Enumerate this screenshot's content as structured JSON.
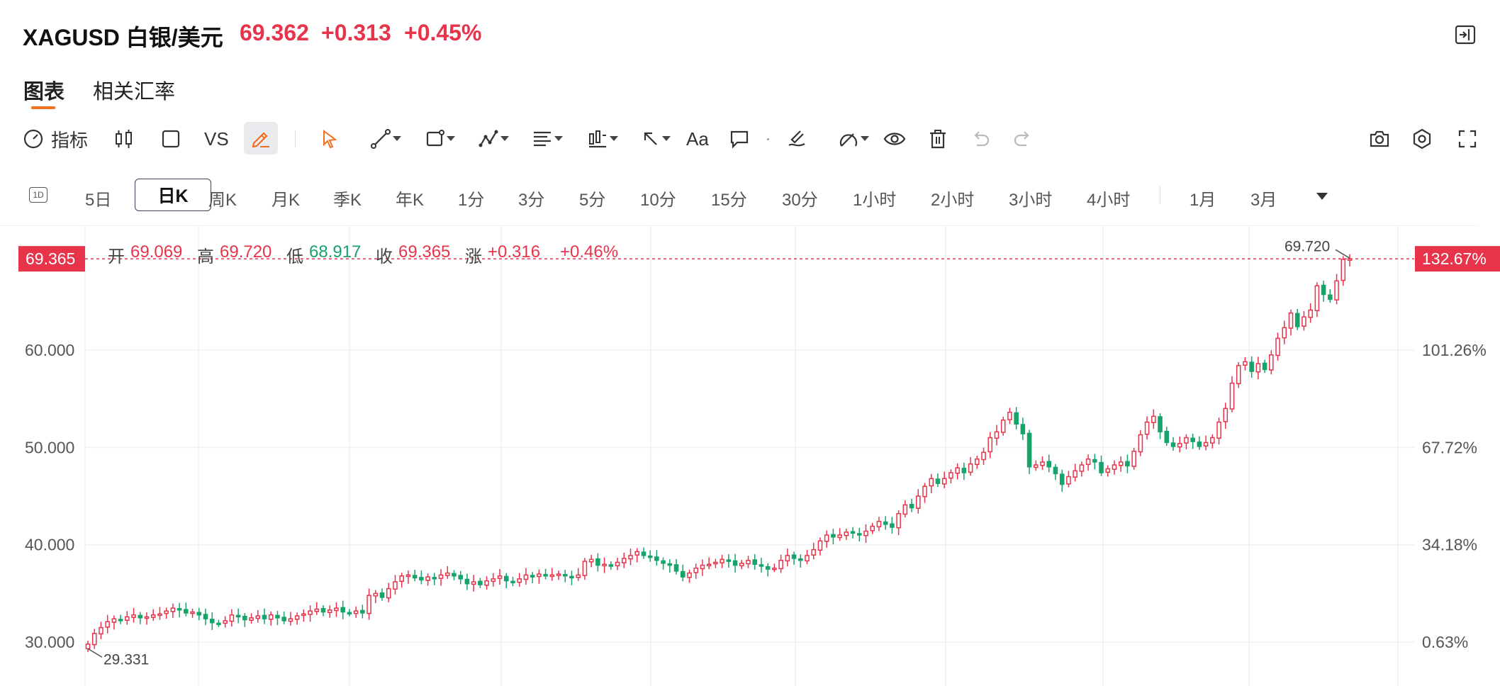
{
  "header": {
    "title": "XAGUSD 白银/美元",
    "price": "69.362",
    "change": "+0.313",
    "change_percent": "+0.45%"
  },
  "tabs": [
    {
      "label": "图表",
      "active": true
    },
    {
      "label": "相关汇率",
      "active": false
    }
  ],
  "toolbar": {
    "indicator_label": "指标",
    "vs_label": "VS",
    "text_label": "Aa"
  },
  "periods": {
    "day_icon": "1D",
    "items": [
      "5日",
      "日K",
      "周K",
      "月K",
      "季K",
      "年K",
      "1分",
      "3分",
      "5分",
      "10分",
      "15分",
      "30分",
      "1小时",
      "2小时",
      "3小时",
      "4小时",
      "1月",
      "3月"
    ],
    "active": "日K"
  },
  "ohlc": {
    "open_label": "开",
    "open": "69.069",
    "high_label": "高",
    "high": "69.720",
    "low_label": "低",
    "low": "68.917",
    "close_label": "收",
    "close": "69.365",
    "change_label": "涨",
    "change": "+0.316",
    "change_percent": "+0.46%"
  },
  "colors": {
    "up": "#e8344b",
    "down": "#17a36a",
    "accent": "#f07020"
  },
  "chart_data": {
    "type": "candlestick",
    "y_left_ticks": [
      "30.000",
      "40.000",
      "50.000",
      "60.000"
    ],
    "y_left_tick_values": [
      30,
      40,
      50,
      60
    ],
    "y_right_ticks": [
      "0.63%",
      "34.18%",
      "67.72%",
      "101.26%"
    ],
    "ylim": [
      25.5,
      72.8
    ],
    "current_price_label": "69.365",
    "current_price": 69.365,
    "current_percent_label": "132.67%",
    "max_label": "69.720",
    "min_label": "29.331",
    "grid": true,
    "closes": [
      29.8,
      30.9,
      31.5,
      32.1,
      32.4,
      32.2,
      32.6,
      32.8,
      32.5,
      32.6,
      32.8,
      32.9,
      33.2,
      33.5,
      33.3,
      33.0,
      33.1,
      32.8,
      32.4,
      32.0,
      31.9,
      32.2,
      32.8,
      32.6,
      32.3,
      32.5,
      32.7,
      32.4,
      32.8,
      32.5,
      32.2,
      32.4,
      32.7,
      32.9,
      33.2,
      33.4,
      33.1,
      33.3,
      33.5,
      33.1,
      33.0,
      33.2,
      33.0,
      34.8,
      35.0,
      34.6,
      35.5,
      36.2,
      36.8,
      36.9,
      36.6,
      36.4,
      36.7,
      36.5,
      36.9,
      37.1,
      36.8,
      36.5,
      36.0,
      36.2,
      35.9,
      36.3,
      36.5,
      36.8,
      36.3,
      36.1,
      36.5,
      36.9,
      36.7,
      37.0,
      36.8,
      36.9,
      37.0,
      36.8,
      36.6,
      36.9,
      38.3,
      38.5,
      37.9,
      38.0,
      37.8,
      38.2,
      38.6,
      38.9,
      39.3,
      38.9,
      38.7,
      38.4,
      38.1,
      37.9,
      37.3,
      36.7,
      37.1,
      37.6,
      37.9,
      38.0,
      38.2,
      38.5,
      38.3,
      37.9,
      38.1,
      38.4,
      38.0,
      37.8,
      37.5,
      37.6,
      38.4,
      38.9,
      38.6,
      38.4,
      38.9,
      39.5,
      40.4,
      41.0,
      40.8,
      41.0,
      41.3,
      41.2,
      41.0,
      41.4,
      41.9,
      42.4,
      42.1,
      41.8,
      43.2,
      44.1,
      43.8,
      45.0,
      46.0,
      46.8,
      46.3,
      46.8,
      47.4,
      47.9,
      47.4,
      48.3,
      48.8,
      49.5,
      51.0,
      51.6,
      52.8,
      53.6,
      52.4,
      51.4,
      48.0,
      48.2,
      48.5,
      48.0,
      47.3,
      46.2,
      47.0,
      47.6,
      48.2,
      48.8,
      48.5,
      47.4,
      47.8,
      48.2,
      48.5,
      48.1,
      49.6,
      51.3,
      52.6,
      53.2,
      51.6,
      50.5,
      50.1,
      50.4,
      51.0,
      50.6,
      50.1,
      50.5,
      51.0,
      52.6,
      54.0,
      56.6,
      58.4,
      58.8,
      57.8,
      58.6,
      58.0,
      59.5,
      61.2,
      62.3,
      63.8,
      62.4,
      63.4,
      64.1,
      66.6,
      65.7,
      65.2,
      67.1,
      69.3,
      69.365
    ],
    "close_label_key": "close"
  }
}
